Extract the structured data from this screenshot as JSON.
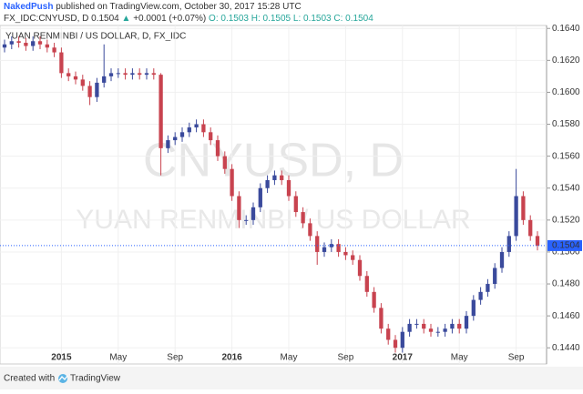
{
  "header": {
    "author": "NakedPush",
    "published": "published on TradingView.com, October 30, 2017 15:28 UTC",
    "symbol": "FX_IDC:CNYUSD, D",
    "last": "0.1504",
    "change": "+0.0001 (+0.07%)",
    "open": "O: 0.1503",
    "high": "H: 0.1505",
    "low": "L: 0.1503",
    "close": "C: 0.1504"
  },
  "footer": {
    "created": "Created with",
    "brand": "TradingView"
  },
  "chart_data": {
    "type": "candlestick",
    "title": "YUAN RENMINBI / US DOLLAR, D, FX_IDC",
    "watermark": "CNYUSD, D",
    "watermark_subtitle": "YUAN RENMINBI / US DOLLAR",
    "up_color": "#3a4a9c",
    "down_color": "#c8434f",
    "last_color": "#2962ff",
    "ylim": [
      0.1439,
      0.16407
    ],
    "yticks": [
      {
        "value": 0.144,
        "label": "0.1440"
      },
      {
        "value": 0.146,
        "label": "0.1460"
      },
      {
        "value": 0.148,
        "label": "0.1480"
      },
      {
        "value": 0.15,
        "label": "0.1500"
      },
      {
        "value": 0.152,
        "label": "0.1520"
      },
      {
        "value": 0.154,
        "label": "0.1540"
      },
      {
        "value": 0.156,
        "label": "0.1560"
      },
      {
        "value": 0.158,
        "label": "0.1580"
      },
      {
        "value": 0.16,
        "label": "0.1600"
      },
      {
        "value": 0.162,
        "label": "0.1620"
      },
      {
        "value": 0.164,
        "label": "0.1640"
      }
    ],
    "xlim": [
      -0.64,
      76.28
    ],
    "xticks": [
      {
        "value": 8,
        "label": "2015"
      },
      {
        "value": 16,
        "label": "May"
      },
      {
        "value": 24,
        "label": "Sep"
      },
      {
        "value": 32,
        "label": "2016"
      },
      {
        "value": 40,
        "label": "May"
      },
      {
        "value": 48,
        "label": "Sep"
      },
      {
        "value": 56,
        "label": "2017"
      },
      {
        "value": 64,
        "label": "May"
      },
      {
        "value": 72,
        "label": "Sep"
      }
    ],
    "last_price": {
      "value": 0.1504,
      "label": "0.1504"
    },
    "open": [
      0.1628,
      0.163,
      0.1632,
      0.1631,
      0.1629,
      0.1632,
      0.163,
      0.1628,
      0.1625,
      0.1612,
      0.161,
      0.1608,
      0.1604,
      0.1597,
      0.1606,
      0.161,
      0.1612,
      0.1612,
      0.1611,
      0.1612,
      0.1611,
      0.1612,
      0.1611,
      0.1565,
      0.157,
      0.1572,
      0.1575,
      0.1578,
      0.158,
      0.1575,
      0.157,
      0.156,
      0.1552,
      0.1535,
      0.152,
      0.152,
      0.1528,
      0.154,
      0.1545,
      0.1548,
      0.1545,
      0.1535,
      0.1525,
      0.1518,
      0.151,
      0.15,
      0.1503,
      0.1505,
      0.15,
      0.1498,
      0.1495,
      0.1485,
      0.1475,
      0.1465,
      0.1452,
      0.1445,
      0.144,
      0.145,
      0.1455,
      0.1455,
      0.1452,
      0.145,
      0.145,
      0.1452,
      0.1455,
      0.1452,
      0.146,
      0.147,
      0.1475,
      0.148,
      0.149,
      0.15,
      0.151,
      0.1535,
      0.152,
      0.151
    ],
    "high": [
      0.1633,
      0.1635,
      0.1635,
      0.1634,
      0.1635,
      0.1635,
      0.1633,
      0.1631,
      0.1628,
      0.1615,
      0.1613,
      0.1611,
      0.1607,
      0.1609,
      0.163,
      0.1615,
      0.1615,
      0.1615,
      0.1615,
      0.1615,
      0.1615,
      0.1615,
      0.1612,
      0.1573,
      0.1575,
      0.1578,
      0.1581,
      0.1583,
      0.1583,
      0.1578,
      0.1573,
      0.1563,
      0.1555,
      0.1538,
      0.1523,
      0.1531,
      0.1543,
      0.1548,
      0.1551,
      0.1551,
      0.1548,
      0.1538,
      0.1528,
      0.1521,
      0.1513,
      0.1506,
      0.1508,
      0.1508,
      0.1503,
      0.1501,
      0.1498,
      0.1488,
      0.1478,
      0.1468,
      0.1455,
      0.1448,
      0.1453,
      0.1458,
      0.1458,
      0.1458,
      0.1455,
      0.1453,
      0.1455,
      0.1458,
      0.1458,
      0.1463,
      0.1473,
      0.1478,
      0.1483,
      0.1493,
      0.1503,
      0.1513,
      0.1552,
      0.1538,
      0.1523,
      0.1513
    ],
    "low": [
      0.1625,
      0.1627,
      0.1628,
      0.1626,
      0.1626,
      0.1627,
      0.1625,
      0.1622,
      0.1609,
      0.1607,
      0.1605,
      0.1601,
      0.1592,
      0.1594,
      0.1603,
      0.1607,
      0.1609,
      0.1608,
      0.1608,
      0.1608,
      0.1608,
      0.1608,
      0.1548,
      0.1562,
      0.1567,
      0.1569,
      0.1572,
      0.1575,
      0.1572,
      0.1567,
      0.1557,
      0.1549,
      0.1532,
      0.1515,
      0.1517,
      0.1517,
      0.1525,
      0.1537,
      0.1542,
      0.1542,
      0.1532,
      0.1522,
      0.1515,
      0.1507,
      0.1492,
      0.1497,
      0.15,
      0.1497,
      0.1495,
      0.1492,
      0.1482,
      0.1472,
      0.1462,
      0.1449,
      0.1442,
      0.1437,
      0.1437,
      0.1447,
      0.1452,
      0.1449,
      0.1447,
      0.1447,
      0.1447,
      0.1449,
      0.1449,
      0.1449,
      0.1457,
      0.1467,
      0.1472,
      0.1477,
      0.1487,
      0.1497,
      0.1507,
      0.1517,
      0.1507,
      0.1501
    ],
    "close": [
      0.163,
      0.1632,
      0.1631,
      0.1629,
      0.1632,
      0.163,
      0.1628,
      0.1625,
      0.1612,
      0.161,
      0.1608,
      0.1604,
      0.1597,
      0.1606,
      0.161,
      0.1612,
      0.1612,
      0.1611,
      0.1612,
      0.1611,
      0.1612,
      0.1611,
      0.1565,
      0.157,
      0.1572,
      0.1575,
      0.1578,
      0.158,
      0.1575,
      0.157,
      0.156,
      0.1552,
      0.1535,
      0.152,
      0.152,
      0.1528,
      0.154,
      0.1545,
      0.1548,
      0.1545,
      0.1535,
      0.1525,
      0.1518,
      0.151,
      0.15,
      0.1503,
      0.1505,
      0.15,
      0.1498,
      0.1495,
      0.1485,
      0.1475,
      0.1465,
      0.1452,
      0.1445,
      0.144,
      0.145,
      0.1455,
      0.1455,
      0.1452,
      0.145,
      0.145,
      0.1452,
      0.1455,
      0.1452,
      0.146,
      0.147,
      0.1475,
      0.148,
      0.149,
      0.15,
      0.151,
      0.1535,
      0.152,
      0.151,
      0.1504
    ]
  }
}
